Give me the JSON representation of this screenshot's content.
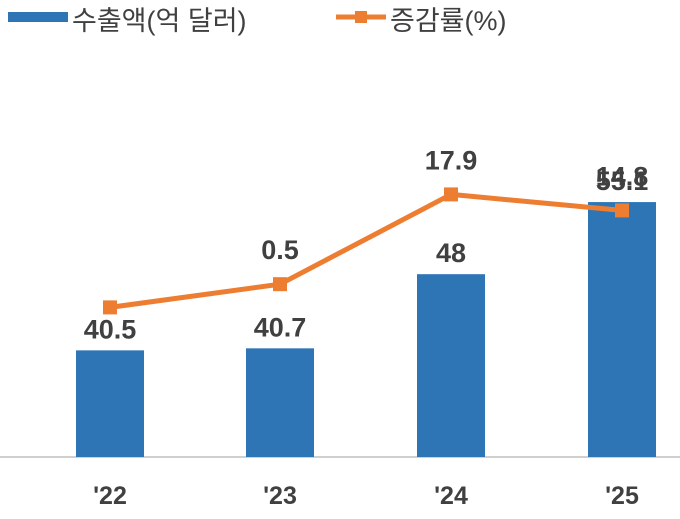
{
  "chart_data": {
    "type": "bar",
    "categories": [
      "'22",
      "'23",
      "'24",
      "'25"
    ],
    "series": [
      {
        "name": "수출액(억 달러)",
        "type": "bar",
        "axis": "left",
        "values": [
          40.5,
          40.7,
          48,
          55.1
        ],
        "labels": [
          "40.5",
          "40.7",
          "48",
          "55.1"
        ]
      },
      {
        "name": "증감률(%)",
        "type": "line",
        "axis": "right",
        "values": [
          -4.0,
          0.5,
          17.9,
          14.8
        ],
        "labels": [
          "",
          "0.5",
          "17.9",
          "14.8"
        ]
      }
    ],
    "ylim_left": [
      30,
      62
    ],
    "ylim_right": [
      -33,
      30
    ],
    "legend_position": "top",
    "grid": false,
    "colors": {
      "bar": "#2E75B6",
      "line": "#ED7D31",
      "text": "#404040",
      "axis": "#BFBFBF"
    }
  }
}
